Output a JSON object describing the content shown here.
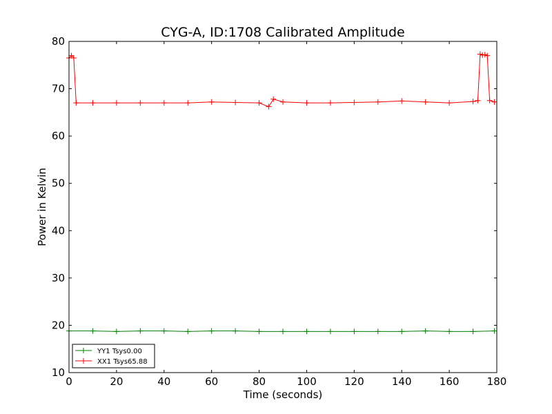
{
  "chart_data": {
    "type": "line",
    "title": "CYG-A, ID:1708 Calibrated Amplitude",
    "xlabel": "Time (seconds)",
    "ylabel": "Power in Kelvin",
    "xlim": [
      0,
      180
    ],
    "ylim": [
      10,
      80
    ],
    "xticks": [
      "0",
      "20",
      "40",
      "60",
      "80",
      "100",
      "120",
      "140",
      "160",
      "180"
    ],
    "yticks": [
      "10",
      "20",
      "30",
      "40",
      "50",
      "60",
      "70",
      "80"
    ],
    "grid": false,
    "legend_position": "lower-left",
    "marker": "+",
    "series": [
      {
        "name": "YY1 Tsys0.00",
        "color": "#008000",
        "x": [
          0,
          10,
          20,
          30,
          40,
          50,
          60,
          70,
          80,
          90,
          100,
          110,
          120,
          130,
          140,
          150,
          160,
          170,
          179
        ],
        "y": [
          18.8,
          18.8,
          18.7,
          18.8,
          18.8,
          18.7,
          18.8,
          18.8,
          18.7,
          18.7,
          18.7,
          18.7,
          18.7,
          18.7,
          18.7,
          18.8,
          18.7,
          18.7,
          18.8
        ]
      },
      {
        "name": "XX1 Tsys65.88",
        "color": "#ff0000",
        "x": [
          0,
          1,
          2,
          3,
          10,
          20,
          30,
          40,
          50,
          60,
          70,
          80,
          84,
          86,
          90,
          100,
          110,
          120,
          130,
          140,
          150,
          160,
          170,
          172,
          173,
          174,
          175,
          176,
          177,
          179
        ],
        "y": [
          76.5,
          77,
          76.5,
          67,
          67,
          67,
          67,
          67,
          67,
          67.2,
          67.1,
          67,
          66.2,
          67.8,
          67.2,
          67,
          67,
          67.1,
          67.2,
          67.4,
          67.2,
          67,
          67.3,
          67.5,
          77.3,
          77.1,
          77.2,
          77,
          67.5,
          67.2
        ]
      }
    ]
  }
}
